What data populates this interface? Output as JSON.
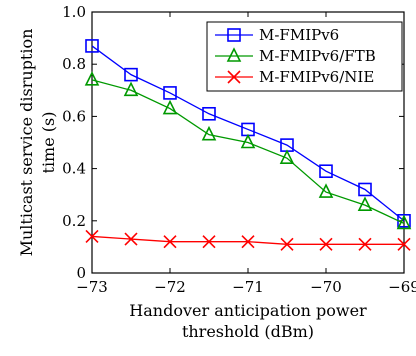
{
  "chart_data": {
    "type": "line",
    "title": "",
    "xlabel_lines": [
      "Handover anticipation power",
      "threshold (dBm)"
    ],
    "ylabel_lines": [
      "Multicast service disruption",
      "time (s)"
    ],
    "xlim": [
      -73,
      -69
    ],
    "ylim": [
      0,
      1.0
    ],
    "x_ticks": [
      -73,
      -72,
      -71,
      -70,
      -69
    ],
    "x_tick_labels": [
      "−73",
      "−72",
      "−71",
      "−70",
      "−69"
    ],
    "y_ticks": [
      0,
      0.2,
      0.4,
      0.6,
      0.8,
      1.0
    ],
    "y_tick_labels": [
      "0",
      "0.2",
      "0.4",
      "0.6",
      "0.8",
      "1.0"
    ],
    "grid": false,
    "legend_position": "top-right",
    "x": [
      -73,
      -72.5,
      -72,
      -71.5,
      -71,
      -70.5,
      -70,
      -69.5,
      -69
    ],
    "series": [
      {
        "name": "M-FMIPv6",
        "color": "#0000ff",
        "marker": "square",
        "values": [
          0.87,
          0.76,
          0.69,
          0.61,
          0.55,
          0.49,
          0.39,
          0.32,
          0.2
        ]
      },
      {
        "name": "M-FMIPv6/FTB",
        "color": "#009900",
        "marker": "triangle",
        "values": [
          0.74,
          0.7,
          0.63,
          0.53,
          0.5,
          0.44,
          0.31,
          0.26,
          0.19
        ]
      },
      {
        "name": "M-FMIPv6/NIE",
        "color": "#ff0000",
        "marker": "x",
        "values": [
          0.14,
          0.13,
          0.12,
          0.12,
          0.12,
          0.11,
          0.11,
          0.11,
          0.11
        ]
      }
    ]
  }
}
